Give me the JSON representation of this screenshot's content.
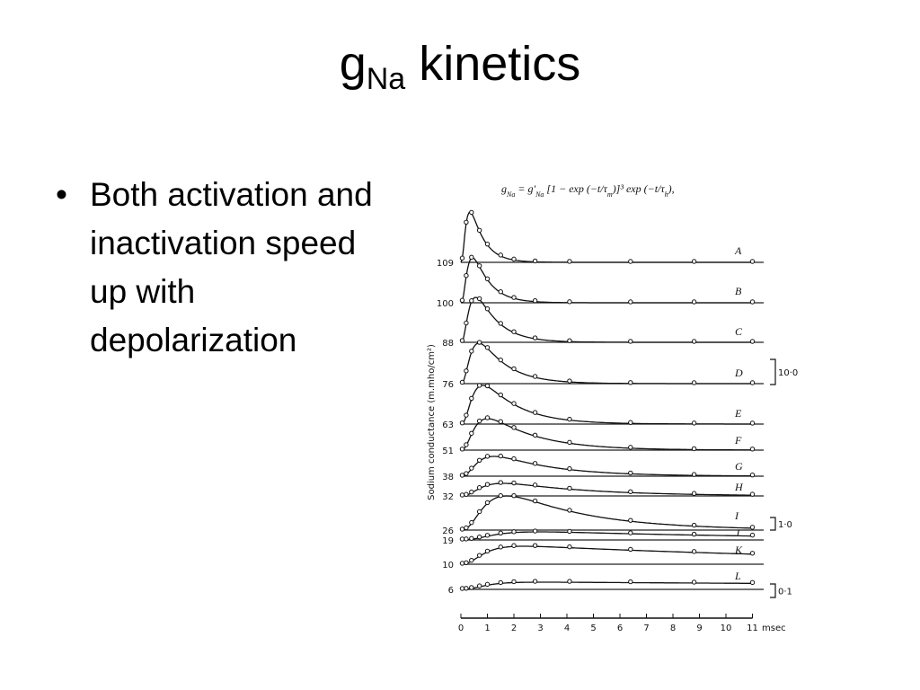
{
  "title": {
    "main": "g",
    "sub": "Na",
    "rest": "kinetics"
  },
  "bullets": [
    "Both activation and inactivation speed up with depolarization"
  ],
  "figure": {
    "formula": [
      "g",
      "Na",
      " = g′",
      "Na",
      " [1 − exp (−t/τ",
      "m",
      ")]³ exp (−t/τ",
      "h",
      "),"
    ],
    "y_label": "Sodium conductance (m.mho/cm²)",
    "traces": [
      {
        "voltage": 109,
        "letter": "A"
      },
      {
        "voltage": 100,
        "letter": "B"
      },
      {
        "voltage": 88,
        "letter": "C"
      },
      {
        "voltage": 76,
        "letter": "D"
      },
      {
        "voltage": 63,
        "letter": "E"
      },
      {
        "voltage": 51,
        "letter": "F"
      },
      {
        "voltage": 38,
        "letter": "G"
      },
      {
        "voltage": 32,
        "letter": "H"
      },
      {
        "voltage": 26,
        "letter": "I"
      },
      {
        "voltage": 19,
        "letter": "J"
      },
      {
        "voltage": 10,
        "letter": "K"
      },
      {
        "voltage": 6,
        "letter": "L"
      }
    ],
    "scale_bars": [
      "10·0",
      "1·0",
      "0·1"
    ],
    "x_ticks": [
      0,
      1,
      2,
      3,
      4,
      5,
      6,
      7,
      8,
      9,
      10,
      11
    ],
    "x_unit": "msec"
  }
}
